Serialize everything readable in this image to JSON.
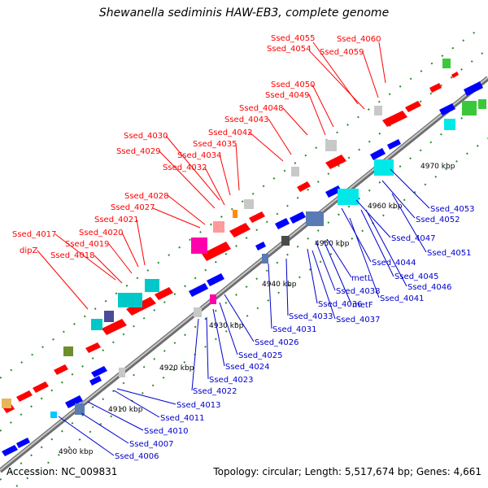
{
  "title": "Shewanella sediminis HAW-EB3, complete genome",
  "footer": {
    "accession": "Accession: NC_009831",
    "summary": "Topology: circular; Length: 5,517,674 bp; Genes: 4,661"
  },
  "colors": {
    "plus_label": "#ff0000",
    "minus_label": "#0000cc",
    "backbone": "#9a9a9a"
  },
  "scale_labels": [
    "4900 kbp",
    "4910 kbp",
    "4920 kbp",
    "4930 kbp",
    "4940 kbp",
    "4950 kbp",
    "4960 kbp",
    "4970 kbp"
  ],
  "top_labels": [
    "Ssed_4060",
    "Ssed_4055",
    "Ssed_4054",
    "Ssed_4059",
    "Ssed_4050",
    "Ssed_4049",
    "Ssed_4048",
    "Ssed_4043",
    "Ssed_4042",
    "Ssed_4030",
    "Ssed_4035",
    "Ssed_4029",
    "Ssed_4034",
    "Ssed_4032",
    "Ssed_4028",
    "Ssed_4027",
    "Ssed_4021",
    "Ssed_4020",
    "Ssed_4017",
    "Ssed_4019",
    "dipZ",
    "Ssed_4018"
  ],
  "bottom_labels": [
    "Ssed_4053",
    "Ssed_4052",
    "Ssed_4047",
    "Ssed_4051",
    "Ssed_4044",
    "Ssed_4045",
    "Ssed_4046",
    "metL",
    "Ssed_4041",
    "Ssed_4038",
    "metF",
    "Ssed_4036",
    "Ssed_4037",
    "Ssed_4033",
    "Ssed_4031",
    "Ssed_4026",
    "Ssed_4025",
    "Ssed_4024",
    "Ssed_4023",
    "Ssed_4022",
    "Ssed_4013",
    "Ssed_4011",
    "Ssed_4010",
    "Ssed_4007",
    "Ssed_4006"
  ]
}
